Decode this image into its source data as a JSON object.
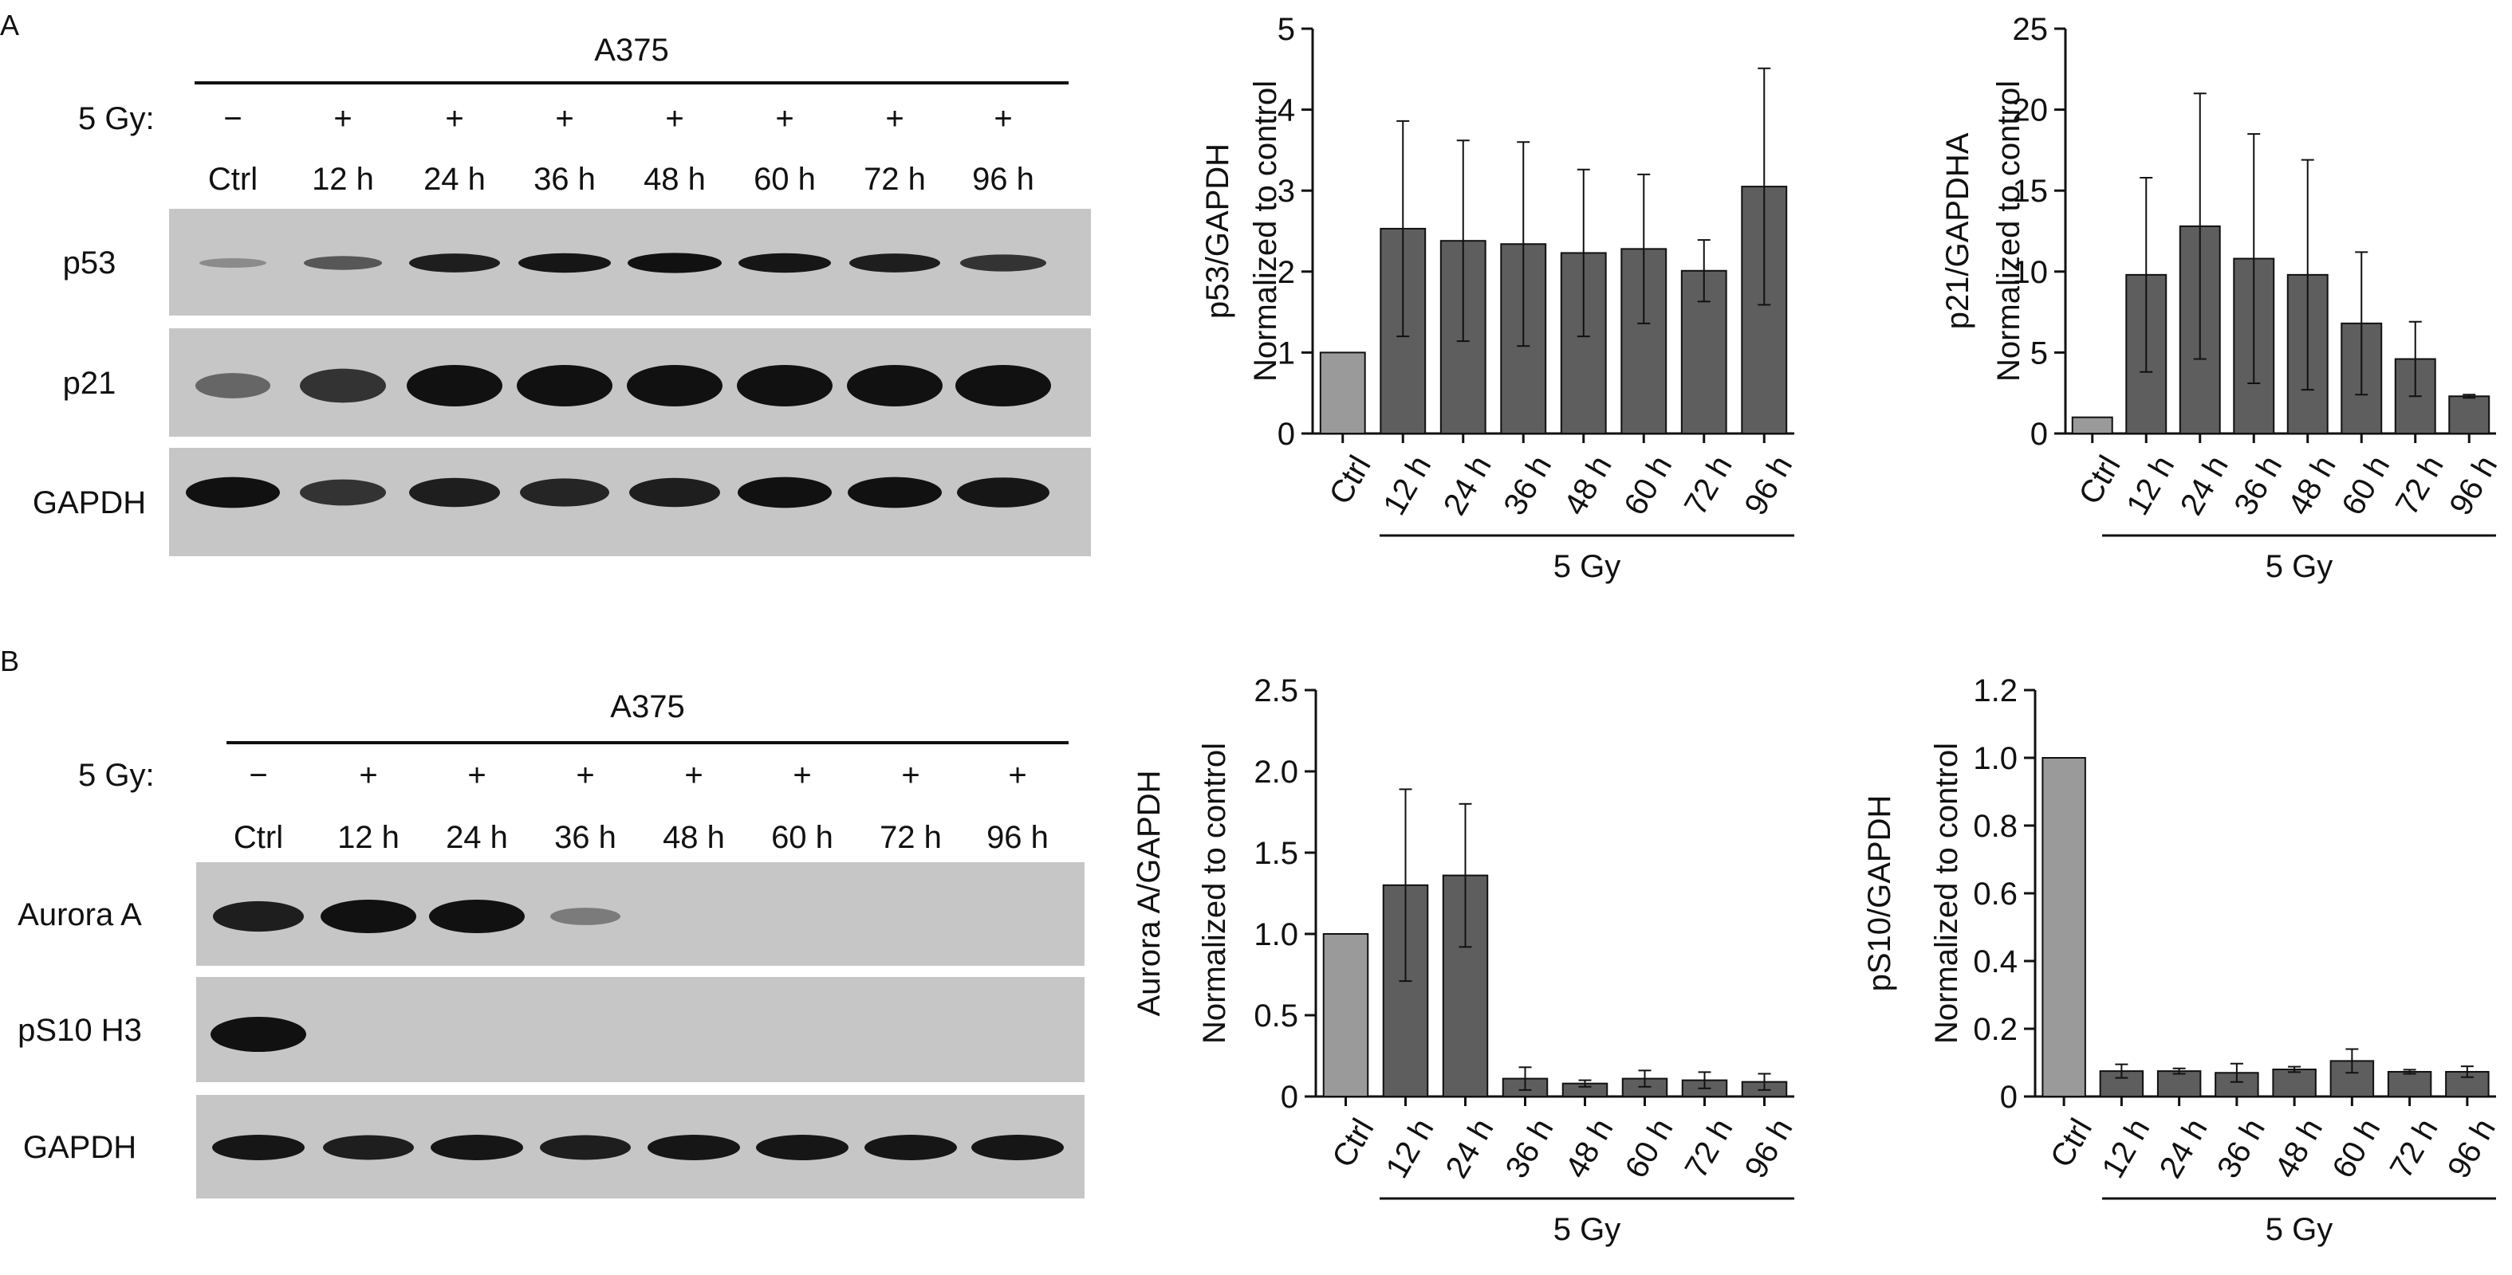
{
  "panels": [
    {
      "label": "A",
      "blot": {
        "cell_line": "A375",
        "dose_label": "5 Gy:",
        "treatment": [
          "−",
          "+",
          "+",
          "+",
          "+",
          "+",
          "+",
          "+"
        ],
        "lanes": [
          "Ctrl",
          "12 h",
          "24 h",
          "36 h",
          "48 h",
          "60 h",
          "72 h",
          "96 h"
        ],
        "rows": [
          {
            "label": "p53",
            "band_intensity": [
              0.1,
              0.45,
              0.85,
              0.9,
              0.95,
              0.9,
              0.85,
              0.7
            ]
          },
          {
            "label": "p21",
            "band_intensity": [
              0.35,
              0.7,
              1.0,
              1.0,
              1.0,
              1.0,
              1.0,
              1.0
            ]
          },
          {
            "label": "GAPDH",
            "band_intensity": [
              0.95,
              0.7,
              0.85,
              0.8,
              0.85,
              0.95,
              0.95,
              0.9
            ]
          }
        ]
      }
    },
    {
      "label": "B",
      "blot": {
        "cell_line": "A375",
        "dose_label": "5 Gy:",
        "treatment": [
          "−",
          "+",
          "+",
          "+",
          "+",
          "+",
          "+",
          "+"
        ],
        "lanes": [
          "Ctrl",
          "12 h",
          "24 h",
          "36 h",
          "48 h",
          "60 h",
          "72 h",
          "96 h"
        ],
        "rows": [
          {
            "label": "Aurora A",
            "band_intensity": [
              0.85,
              1.0,
              1.0,
              0.2,
              0.0,
              0.0,
              0.0,
              0.0
            ]
          },
          {
            "label": "pS10 H3",
            "band_intensity": [
              1.0,
              0.0,
              0.0,
              0.0,
              0.0,
              0.0,
              0.0,
              0.0
            ]
          },
          {
            "label": "GAPDH",
            "band_intensity": [
              0.9,
              0.85,
              0.9,
              0.85,
              0.9,
              0.9,
              0.9,
              0.9
            ]
          }
        ]
      }
    }
  ],
  "chart_data": [
    {
      "type": "bar",
      "title": "",
      "categories": [
        "Ctrl",
        "12 h",
        "24 h",
        "36 h",
        "48 h",
        "60 h",
        "72 h",
        "96 h"
      ],
      "values": [
        1.0,
        2.53,
        2.38,
        2.34,
        2.23,
        2.28,
        2.01,
        3.05
      ],
      "errors": [
        0,
        1.33,
        1.24,
        1.26,
        1.03,
        0.92,
        0.38,
        1.46
      ],
      "ylabel": [
        "p53/GAPDH",
        "Normalized to control"
      ],
      "ylim": [
        0,
        5
      ],
      "yticks": [
        "0",
        "1",
        "2",
        "3",
        "4",
        "5"
      ],
      "group_label": "5 Gy",
      "colors": {
        "ctrl": "#9a9a9a",
        "treated": "#5e5e5e"
      }
    },
    {
      "type": "bar",
      "title": "",
      "categories": [
        "Ctrl",
        "12 h",
        "24 h",
        "36 h",
        "48 h",
        "60 h",
        "72 h",
        "96 h"
      ],
      "values": [
        1.0,
        9.8,
        12.8,
        10.8,
        9.8,
        6.8,
        4.6,
        2.3
      ],
      "errors": [
        0,
        6.0,
        8.2,
        7.7,
        7.1,
        4.4,
        2.3,
        0.1
      ],
      "ylabel": [
        "p21/GAPDHA",
        "Normalized to control"
      ],
      "ylim": [
        0,
        25
      ],
      "yticks": [
        "0",
        "5",
        "10",
        "15",
        "20",
        "25"
      ],
      "group_label": "5 Gy",
      "colors": {
        "ctrl": "#9a9a9a",
        "treated": "#5e5e5e"
      }
    },
    {
      "type": "bar",
      "title": "",
      "categories": [
        "Ctrl",
        "12 h",
        "24 h",
        "36 h",
        "48 h",
        "60 h",
        "72 h",
        "96 h"
      ],
      "values": [
        1.0,
        1.3,
        1.36,
        0.11,
        0.08,
        0.11,
        0.1,
        0.09
      ],
      "errors": [
        0,
        0.59,
        0.44,
        0.07,
        0.02,
        0.05,
        0.05,
        0.05
      ],
      "ylabel": [
        "Aurora A/GAPDH",
        "Normalized to control"
      ],
      "ylim": [
        0,
        2.5
      ],
      "yticks": [
        "0",
        "0.5",
        "1.0",
        "1.5",
        "2.0",
        "2.5"
      ],
      "group_label": "5 Gy",
      "colors": {
        "ctrl": "#9a9a9a",
        "treated": "#5e5e5e"
      }
    },
    {
      "type": "bar",
      "title": "",
      "categories": [
        "Ctrl",
        "12 h",
        "24 h",
        "36 h",
        "48 h",
        "60 h",
        "72 h",
        "96 h"
      ],
      "values": [
        1.0,
        0.075,
        0.075,
        0.07,
        0.08,
        0.105,
        0.073,
        0.073
      ],
      "errors": [
        0,
        0.02,
        0.008,
        0.027,
        0.008,
        0.035,
        0.006,
        0.016
      ],
      "ylabel": [
        "pS10/GAPDH",
        "Normalized to control"
      ],
      "ylim": [
        0,
        1.2
      ],
      "yticks": [
        "0",
        "0.2",
        "0.4",
        "0.6",
        "0.8",
        "1.0",
        "1.2"
      ],
      "group_label": "5 Gy",
      "colors": {
        "ctrl": "#9a9a9a",
        "treated": "#5e5e5e"
      }
    }
  ]
}
